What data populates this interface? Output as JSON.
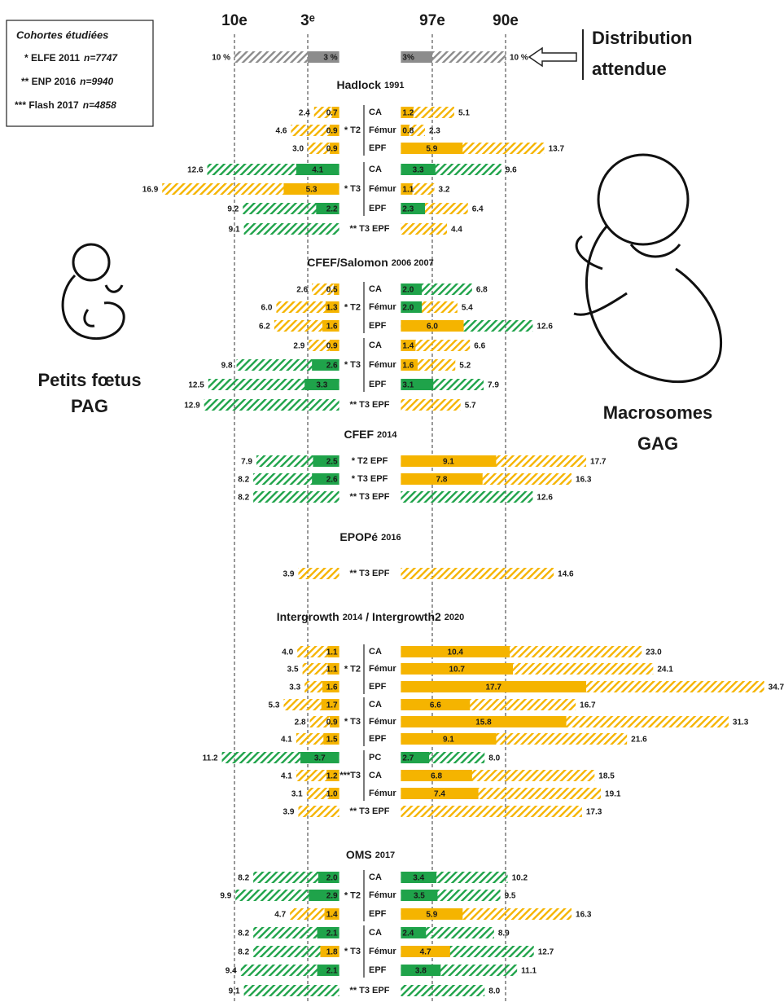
{
  "chart_data": {
    "type": "diverging_bar",
    "legend": {
      "title": "Cohortes étudiées",
      "items": [
        {
          "label": "* ELFE 2011",
          "n": "n=7747"
        },
        {
          "label": "** ENP  2016",
          "n": "n=9940"
        },
        {
          "label": "*** Flash 2017",
          "n": "n=4858"
        }
      ]
    },
    "xlim_left": [
      0,
      20
    ],
    "xlim_right": [
      0,
      36
    ],
    "xticks_left": [
      {
        "value": 10,
        "label": "10e"
      },
      {
        "value": 3,
        "label": "3ᵉ"
      }
    ],
    "xticks_right": [
      {
        "value": 3,
        "label": "97e"
      },
      {
        "value": 10,
        "label": "90e"
      }
    ],
    "palette": {
      "y": "#f5b400",
      "g": "#1fa34a"
    },
    "expected": {
      "label": [
        "Distribution",
        "attendue"
      ],
      "values": [
        10,
        3,
        3,
        10
      ],
      "value_labels": [
        "10 %",
        "3 %",
        "3%",
        "10 %"
      ],
      "color": "#8c8c8c"
    },
    "left_group": [
      "Petits fœtus",
      "PAG"
    ],
    "right_group": [
      "Macrosomes",
      "GAG"
    ],
    "sections": [
      {
        "title": [
          "Hadlock",
          "1991"
        ],
        "groups": [
          {
            "label": "* T2",
            "rows": [
              {
                "label": "CA",
                "values": [
                  2.4,
                  0.7,
                  1.2,
                  5.1
                ],
                "colors": [
                  "y",
                  "y",
                  "y",
                  "y"
                ]
              },
              {
                "label": "Fémur",
                "values": [
                  4.6,
                  0.9,
                  0.8,
                  2.3
                ],
                "colors": [
                  "y",
                  "y",
                  "y",
                  "y"
                ]
              },
              {
                "label": "EPF",
                "values": [
                  3.0,
                  0.9,
                  5.9,
                  13.7
                ],
                "colors": [
                  "y",
                  "y",
                  "y",
                  "y"
                ],
                "value_labels": [
                  "3.0",
                  "0.9",
                  "5.9",
                  "13.7"
                ]
              }
            ]
          },
          {
            "label": "* T3",
            "rows": [
              {
                "label": "CA",
                "values": [
                  12.6,
                  4.1,
                  3.3,
                  9.6
                ],
                "colors": [
                  "g",
                  "g",
                  "g",
                  "g"
                ]
              },
              {
                "label": "Fémur",
                "values": [
                  16.9,
                  5.3,
                  1.1,
                  3.2
                ],
                "colors": [
                  "y",
                  "y",
                  "y",
                  "y"
                ]
              },
              {
                "label": "EPF",
                "values": [
                  9.2,
                  2.2,
                  2.3,
                  6.4
                ],
                "colors": [
                  "g",
                  "g",
                  "g",
                  "y"
                ]
              }
            ]
          },
          {
            "label": "** T3 EPF",
            "rows": [
              {
                "values": [
                  9.1,
                  null,
                  null,
                  4.4
                ],
                "colors": [
                  "g",
                  null,
                  null,
                  "y"
                ]
              }
            ]
          }
        ]
      },
      {
        "title": [
          "CFEF/Salomon",
          "2006 2007"
        ],
        "groups": [
          {
            "label": "* T2",
            "rows": [
              {
                "label": "CA",
                "values": [
                  2.6,
                  0.5,
                  2.0,
                  6.8
                ],
                "colors": [
                  "y",
                  "y",
                  "g",
                  "g"
                ],
                "value_labels": [
                  "2.6",
                  "0.5",
                  "2.0",
                  "6.8"
                ]
              },
              {
                "label": "Fémur",
                "values": [
                  6.0,
                  1.3,
                  2.0,
                  5.4
                ],
                "colors": [
                  "y",
                  "y",
                  "g",
                  "y"
                ],
                "value_labels": [
                  "6.0",
                  "1.3",
                  "2.0",
                  "5.4"
                ]
              },
              {
                "label": "EPF",
                "values": [
                  6.2,
                  1.6,
                  6.0,
                  12.6
                ],
                "colors": [
                  "y",
                  "y",
                  "y",
                  "g"
                ],
                "value_labels": [
                  "6.2",
                  "1.6",
                  "6.0",
                  "12.6"
                ]
              }
            ]
          },
          {
            "label": "* T3",
            "rows": [
              {
                "label": "CA",
                "values": [
                  2.9,
                  0.9,
                  1.4,
                  6.6
                ],
                "colors": [
                  "y",
                  "y",
                  "y",
                  "y"
                ]
              },
              {
                "label": "Fémur",
                "values": [
                  9.8,
                  2.6,
                  1.6,
                  5.2
                ],
                "colors": [
                  "g",
                  "g",
                  "y",
                  "y"
                ]
              },
              {
                "label": "EPF",
                "values": [
                  12.5,
                  3.3,
                  3.1,
                  7.9
                ],
                "colors": [
                  "g",
                  "g",
                  "g",
                  "g"
                ]
              }
            ]
          },
          {
            "label": "** T3 EPF",
            "rows": [
              {
                "values": [
                  12.9,
                  null,
                  null,
                  5.7
                ],
                "colors": [
                  "g",
                  null,
                  null,
                  "y"
                ]
              }
            ]
          }
        ]
      },
      {
        "title": [
          "CFEF",
          "2014"
        ],
        "groups": [
          {
            "label": "* T2 EPF",
            "rows": [
              {
                "values": [
                  7.9,
                  2.5,
                  9.1,
                  17.7
                ],
                "colors": [
                  "g",
                  "g",
                  "y",
                  "y"
                ]
              }
            ]
          },
          {
            "label": "* T3 EPF",
            "rows": [
              {
                "values": [
                  8.2,
                  2.6,
                  7.8,
                  16.3
                ],
                "colors": [
                  "g",
                  "g",
                  "y",
                  "y"
                ]
              }
            ]
          },
          {
            "label": "** T3 EPF",
            "rows": [
              {
                "values": [
                  8.2,
                  null,
                  null,
                  12.6
                ],
                "colors": [
                  "g",
                  null,
                  null,
                  "g"
                ]
              }
            ]
          }
        ]
      },
      {
        "title": [
          "EPOPé",
          "2016"
        ],
        "groups": [
          {
            "label": "** T3 EPF",
            "rows": [
              {
                "values": [
                  3.9,
                  null,
                  null,
                  14.6
                ],
                "colors": [
                  "y",
                  null,
                  null,
                  "y"
                ]
              }
            ]
          }
        ]
      },
      {
        "title": [
          "Intergrowth",
          "2014",
          "/ Intergrowth2",
          "2020"
        ],
        "groups": [
          {
            "label": "* T2",
            "rows": [
              {
                "label": "CA",
                "values": [
                  4.0,
                  1.1,
                  10.4,
                  23.0
                ],
                "colors": [
                  "y",
                  "y",
                  "y",
                  "y"
                ],
                "value_labels": [
                  "4.0",
                  "1.1",
                  "10.4",
                  "23.0"
                ]
              },
              {
                "label": "Fémur",
                "values": [
                  3.5,
                  1.1,
                  10.7,
                  24.1
                ],
                "colors": [
                  "y",
                  "y",
                  "y",
                  "y"
                ]
              },
              {
                "label": "EPF",
                "values": [
                  3.3,
                  1.6,
                  17.7,
                  34.7
                ],
                "colors": [
                  "y",
                  "y",
                  "y",
                  "y"
                ]
              }
            ]
          },
          {
            "label": "* T3",
            "rows": [
              {
                "label": "CA",
                "values": [
                  5.3,
                  1.7,
                  6.6,
                  16.7
                ],
                "colors": [
                  "y",
                  "y",
                  "y",
                  "y"
                ]
              },
              {
                "label": "Fémur",
                "values": [
                  2.8,
                  0.9,
                  15.8,
                  31.3
                ],
                "colors": [
                  "y",
                  "y",
                  "y",
                  "y"
                ]
              },
              {
                "label": "EPF",
                "values": [
                  4.1,
                  1.5,
                  9.1,
                  21.6
                ],
                "colors": [
                  "y",
                  "y",
                  "y",
                  "y"
                ]
              }
            ]
          },
          {
            "label": "***T3",
            "rows": [
              {
                "label": "PC",
                "values": [
                  11.2,
                  3.7,
                  2.7,
                  8.0
                ],
                "colors": [
                  "g",
                  "g",
                  "g",
                  "g"
                ],
                "value_labels": [
                  "11.2",
                  "3.7",
                  "2.7",
                  "8.0"
                ]
              },
              {
                "label": "CA",
                "values": [
                  4.1,
                  1.2,
                  6.8,
                  18.5
                ],
                "colors": [
                  "y",
                  "y",
                  "y",
                  "y"
                ]
              },
              {
                "label": "Fémur",
                "values": [
                  3.1,
                  1.0,
                  7.4,
                  19.1
                ],
                "colors": [
                  "y",
                  "y",
                  "y",
                  "y"
                ],
                "value_labels": [
                  "3.1",
                  "1.0",
                  "7.4",
                  "19.1"
                ]
              }
            ]
          },
          {
            "label": "** T3 EPF",
            "rows": [
              {
                "values": [
                  3.9,
                  null,
                  null,
                  17.3
                ],
                "colors": [
                  "y",
                  null,
                  null,
                  "y"
                ]
              }
            ]
          }
        ]
      },
      {
        "title": [
          "OMS",
          "2017"
        ],
        "groups": [
          {
            "label": "* T2",
            "rows": [
              {
                "label": "CA",
                "values": [
                  8.2,
                  2.0,
                  3.4,
                  10.2
                ],
                "colors": [
                  "g",
                  "g",
                  "g",
                  "g"
                ],
                "value_labels": [
                  "8.2",
                  "2.0",
                  "3.4",
                  "10.2"
                ]
              },
              {
                "label": "Fémur",
                "values": [
                  9.9,
                  2.9,
                  3.5,
                  9.5
                ],
                "colors": [
                  "g",
                  "g",
                  "g",
                  "g"
                ]
              },
              {
                "label": "EPF",
                "values": [
                  4.7,
                  1.4,
                  5.9,
                  16.3
                ],
                "colors": [
                  "y",
                  "y",
                  "y",
                  "y"
                ]
              }
            ]
          },
          {
            "label": "* T3",
            "rows": [
              {
                "label": "CA",
                "values": [
                  8.2,
                  2.1,
                  2.4,
                  8.9
                ],
                "colors": [
                  "g",
                  "g",
                  "g",
                  "g"
                ]
              },
              {
                "label": "Fémur",
                "values": [
                  8.2,
                  1.8,
                  4.7,
                  12.7
                ],
                "colors": [
                  "g",
                  "y",
                  "y",
                  "g"
                ]
              },
              {
                "label": "EPF",
                "values": [
                  9.4,
                  2.1,
                  3.8,
                  11.1
                ],
                "colors": [
                  "g",
                  "g",
                  "g",
                  "g"
                ]
              }
            ]
          },
          {
            "label": "** T3 EPF",
            "rows": [
              {
                "values": [
                  9.1,
                  null,
                  null,
                  8.0
                ],
                "colors": [
                  "g",
                  null,
                  null,
                  "g"
                ],
                "value_labels": [
                  "9.1",
                  null,
                  null,
                  "8.0"
                ]
              }
            ]
          }
        ]
      }
    ]
  }
}
